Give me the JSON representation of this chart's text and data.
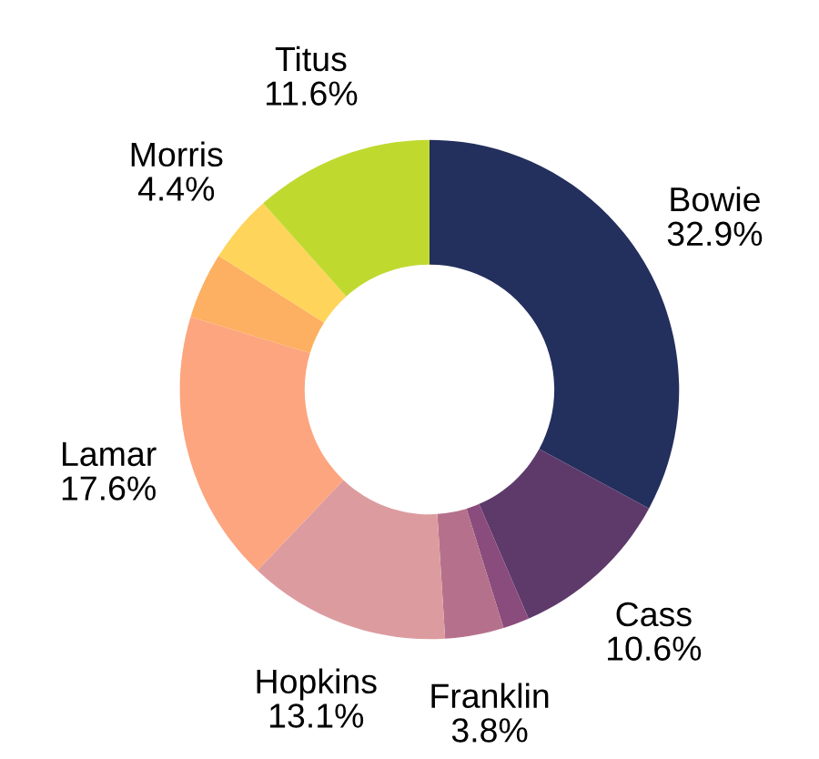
{
  "chart_data": {
    "type": "donut",
    "categories": [
      "Bowie",
      "Cass",
      null,
      "Franklin",
      "Hopkins",
      "Lamar",
      null,
      "Morris",
      "Titus"
    ],
    "values": [
      32.9,
      10.6,
      1.7,
      3.8,
      13.1,
      17.6,
      4.3,
      4.4,
      11.6
    ],
    "value_labels": [
      "32.9%",
      "10.6%",
      null,
      "3.8%",
      "13.1%",
      "17.6%",
      null,
      "4.4%",
      "11.6%"
    ],
    "colors": [
      "#232f5c",
      "#5e3a6b",
      "#8a4c7c",
      "#b5718b",
      "#dc9c9f",
      "#fca57f",
      "#fdb061",
      "#fed45a",
      "#c0d92f"
    ]
  }
}
